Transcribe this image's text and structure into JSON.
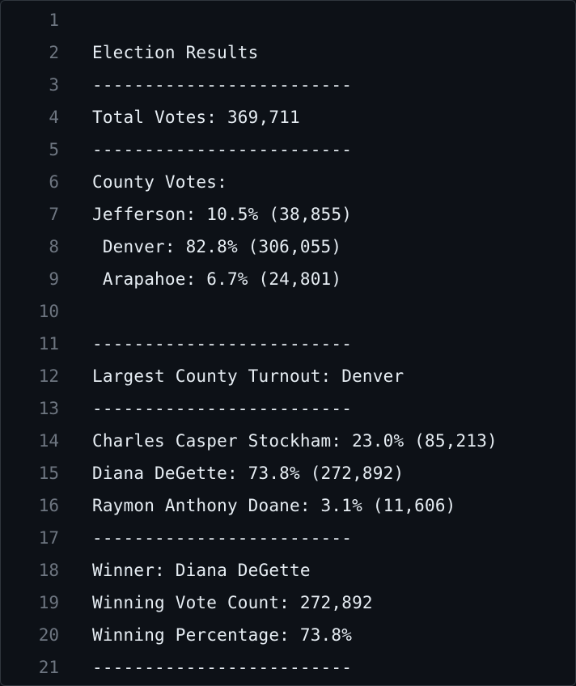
{
  "lines": [
    {
      "num": "1",
      "text": ""
    },
    {
      "num": "2",
      "text": "Election Results"
    },
    {
      "num": "3",
      "text": "-------------------------"
    },
    {
      "num": "4",
      "text": "Total Votes: 369,711"
    },
    {
      "num": "5",
      "text": "-------------------------"
    },
    {
      "num": "6",
      "text": "County Votes:"
    },
    {
      "num": "7",
      "text": "Jefferson: 10.5% (38,855)"
    },
    {
      "num": "8",
      "text": " Denver: 82.8% (306,055)"
    },
    {
      "num": "9",
      "text": " Arapahoe: 6.7% (24,801)"
    },
    {
      "num": "10",
      "text": ""
    },
    {
      "num": "11",
      "text": "-------------------------"
    },
    {
      "num": "12",
      "text": "Largest County Turnout: Denver"
    },
    {
      "num": "13",
      "text": "-------------------------"
    },
    {
      "num": "14",
      "text": "Charles Casper Stockham: 23.0% (85,213)"
    },
    {
      "num": "15",
      "text": "Diana DeGette: 73.8% (272,892)"
    },
    {
      "num": "16",
      "text": "Raymon Anthony Doane: 3.1% (11,606)"
    },
    {
      "num": "17",
      "text": "-------------------------"
    },
    {
      "num": "18",
      "text": "Winner: Diana DeGette"
    },
    {
      "num": "19",
      "text": "Winning Vote Count: 272,892"
    },
    {
      "num": "20",
      "text": "Winning Percentage: 73.8%"
    },
    {
      "num": "21",
      "text": "-------------------------"
    }
  ]
}
